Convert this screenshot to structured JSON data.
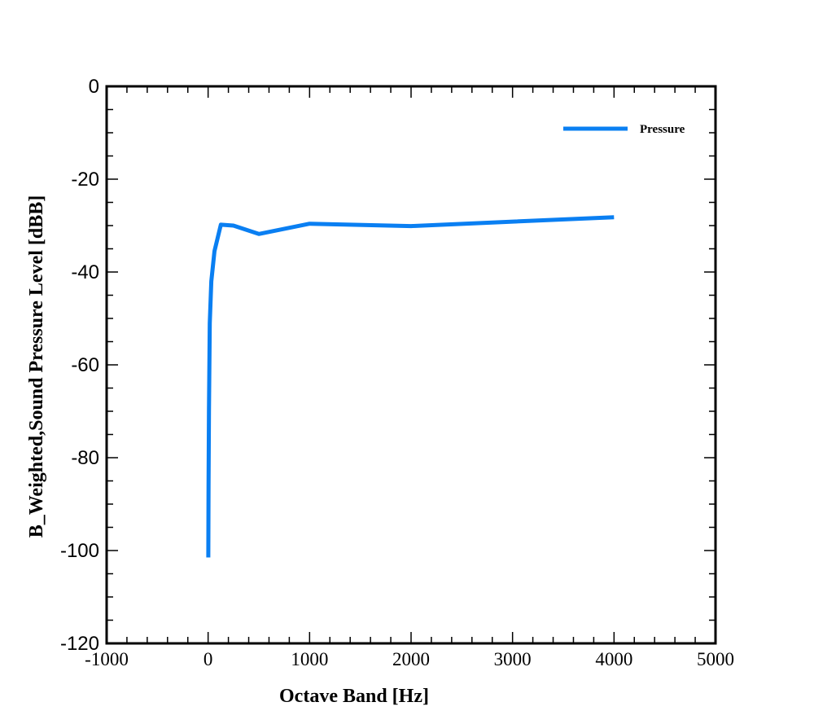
{
  "chart_data": {
    "type": "line",
    "title": "",
    "xlabel": "Octave Band [Hz]",
    "ylabel": "B_Weighted,Sound Pressure Level [dBB]",
    "xlim": [
      -1000,
      5000
    ],
    "ylim": [
      -120,
      0
    ],
    "xticks": [
      "-1000",
      "0",
      "1000",
      "2000",
      "3000",
      "4000",
      "5000"
    ],
    "yticks": [
      "0",
      "-20",
      "-40",
      "-60",
      "-80",
      "-100",
      "-120"
    ],
    "grid": false,
    "legend": "top-right",
    "series": [
      {
        "name": "Pressure",
        "color": "#0a7ff2",
        "x": [
          2,
          4,
          8,
          16,
          31.5,
          63,
          125,
          250,
          500,
          1000,
          2000,
          4000
        ],
        "y": [
          -101.5,
          -86,
          -70,
          -51,
          -42,
          -35.5,
          -29.8,
          -30,
          -31.8,
          -29.6,
          -30.1,
          -28.2
        ]
      }
    ]
  }
}
